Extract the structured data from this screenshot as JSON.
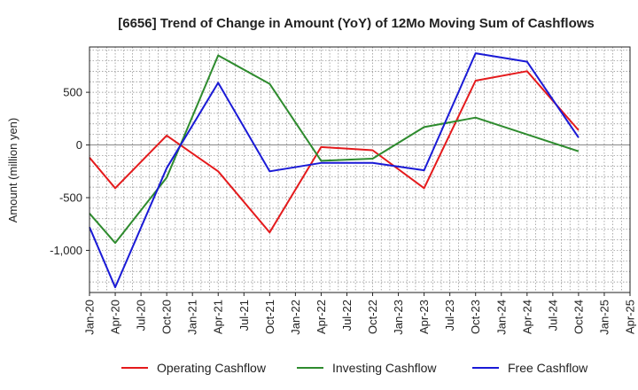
{
  "chart_data": {
    "type": "line",
    "title": "[6656]  Trend of Change in Amount (YoY) of 12Mo Moving Sum of Cashflows",
    "xlabel": "",
    "ylabel": "Amount (million yen)",
    "ylim": [
      -1400,
      930
    ],
    "yticks": [
      500,
      0,
      -500,
      -1000
    ],
    "ytick_labels": [
      "500",
      "0",
      "-500",
      "-1,000"
    ],
    "categories": [
      "Jan-20",
      "Apr-20",
      "Jul-20",
      "Oct-20",
      "Jan-21",
      "Apr-21",
      "Jul-21",
      "Oct-21",
      "Jan-22",
      "Apr-22",
      "Jul-22",
      "Oct-22",
      "Jan-23",
      "Apr-23",
      "Jul-23",
      "Oct-23",
      "Jan-24",
      "Apr-24",
      "Jul-24",
      "Oct-24",
      "Jan-25",
      "Apr-25"
    ],
    "grid": true,
    "legend_position": "bottom",
    "series": [
      {
        "name": "Operating Cashflow",
        "color": "#e41a1c",
        "points": [
          [
            0,
            -120
          ],
          [
            1,
            -410
          ],
          [
            3,
            90
          ],
          [
            5,
            -250
          ],
          [
            7,
            -830
          ],
          [
            9,
            -20
          ],
          [
            11,
            -50
          ],
          [
            13,
            -410
          ],
          [
            15,
            610
          ],
          [
            17,
            700
          ],
          [
            19,
            140
          ]
        ]
      },
      {
        "name": "Investing Cashflow",
        "color": "#2e8b2e",
        "points": [
          [
            0,
            -650
          ],
          [
            1,
            -930
          ],
          [
            3,
            -310
          ],
          [
            5,
            850
          ],
          [
            7,
            580
          ],
          [
            9,
            -150
          ],
          [
            11,
            -130
          ],
          [
            13,
            170
          ],
          [
            15,
            260
          ],
          [
            17,
            100
          ],
          [
            19,
            -60
          ]
        ]
      },
      {
        "name": "Free Cashflow",
        "color": "#1a1ad6",
        "points": [
          [
            0,
            -780
          ],
          [
            1,
            -1350
          ],
          [
            3,
            -220
          ],
          [
            5,
            590
          ],
          [
            7,
            -250
          ],
          [
            9,
            -170
          ],
          [
            11,
            -170
          ],
          [
            13,
            -240
          ],
          [
            15,
            870
          ],
          [
            17,
            790
          ],
          [
            19,
            70
          ]
        ]
      }
    ]
  }
}
